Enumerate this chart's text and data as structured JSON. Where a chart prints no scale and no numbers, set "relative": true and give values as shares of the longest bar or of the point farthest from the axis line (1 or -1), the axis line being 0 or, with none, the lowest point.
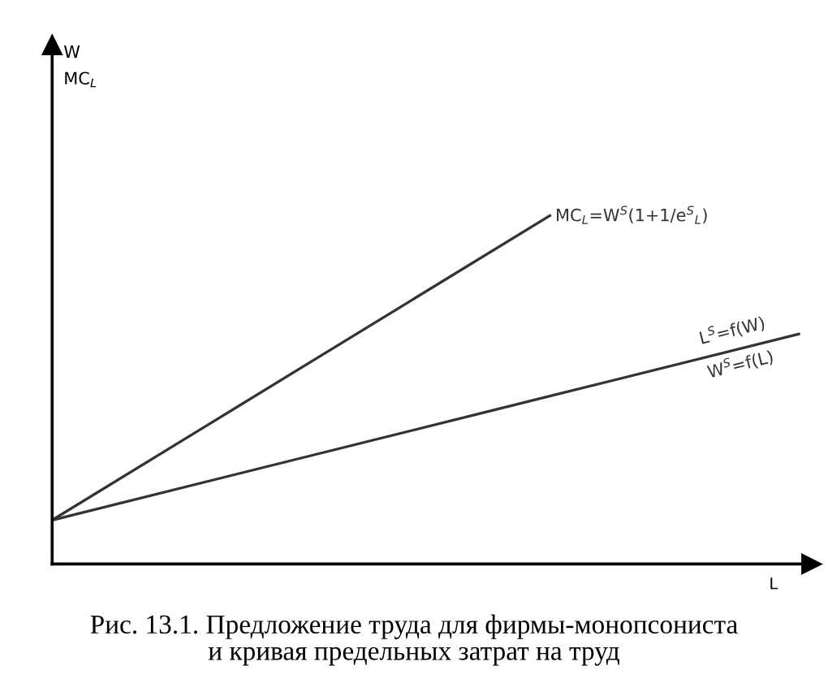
{
  "chart_data": {
    "type": "line",
    "relative": true,
    "xlabel": "L",
    "categories": [
      null,
      null,
      null,
      null
    ],
    "tick_labels": false,
    "legend": false,
    "marker": "none",
    "line_style": "solid",
    "series": [
      {
        "name": "MC$_{L}$=W$^{S}$(1+1/e$^{S}$$_{L}$)",
        "color": "#333333",
        "values": [
          0.126,
          0.563,
          1,
          null
        ]
      },
      {
        "name": "L$^{S}$=f(W)\nW$^{S}$=f(L)",
        "color": "#333333",
        "values": [
          0.126,
          0.304,
          0.482,
          0.66
        ]
      }
    ],
    "annotations": [
      "W\nMC$_{L}$",
      "Рис. 13.1. Предложение труда для фирмы-монопсониста\nи кривая предельных затрат на труд"
    ]
  }
}
